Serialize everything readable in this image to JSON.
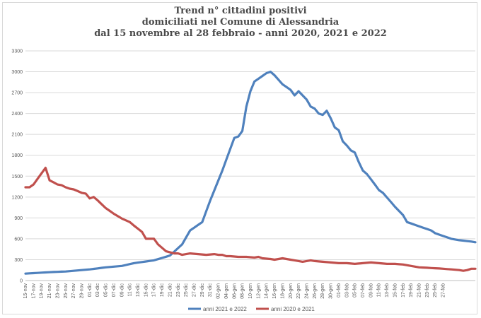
{
  "chart_data": {
    "type": "line",
    "title": [
      "Trend n° cittadini positivi",
      "domiciliati nel Comune di Alessandria",
      "dal 15 novembre al 28 febbraio - anni 2020, 2021 e 2022"
    ],
    "xlabel": "",
    "ylabel": "",
    "ylim": [
      0,
      3300
    ],
    "yticks": [
      0,
      300,
      600,
      900,
      1200,
      1500,
      1800,
      2100,
      2400,
      2700,
      3000,
      3300
    ],
    "grid": true,
    "legend_position": "bottom",
    "x_tick_labels": [
      "15-nov",
      "17-nov",
      "19-nov",
      "21-nov",
      "23-nov",
      "25-nov",
      "27-nov",
      "29-nov",
      "01-dic",
      "03-dic",
      "05-dic",
      "07-dic",
      "09-dic",
      "11-dic",
      "13-dic",
      "15-dic",
      "17-dic",
      "19-dic",
      "21-dic",
      "23-dic",
      "25-dic",
      "27-dic",
      "29-dic",
      "31-dic",
      "02-gen",
      "04-gen",
      "06-gen",
      "08-gen",
      "10-gen",
      "12-gen",
      "14-gen",
      "16-gen",
      "18-gen",
      "20-gen",
      "22-gen",
      "24-gen",
      "26-gen",
      "28-gen",
      "30-gen",
      "01-feb",
      "03-feb",
      "05-feb",
      "07-feb",
      "09-feb",
      "11-feb",
      "13-feb",
      "15-feb",
      "17-feb",
      "19-feb",
      "21-feb",
      "23-feb",
      "25-feb",
      "27-feb"
    ],
    "series": [
      {
        "name": "anni 2021 e 2022",
        "color": "#4f81bd",
        "keypoints": [
          [
            0,
            100
          ],
          [
            6,
            120
          ],
          [
            10,
            130
          ],
          [
            16,
            160
          ],
          [
            20,
            190
          ],
          [
            24,
            210
          ],
          [
            27,
            250
          ],
          [
            32,
            290
          ],
          [
            36,
            360
          ],
          [
            39,
            520
          ],
          [
            41,
            720
          ],
          [
            44,
            840
          ],
          [
            46,
            1150
          ],
          [
            49,
            1580
          ],
          [
            52,
            2050
          ],
          [
            53,
            2070
          ],
          [
            54,
            2150
          ],
          [
            55,
            2500
          ],
          [
            56,
            2720
          ],
          [
            57,
            2860
          ],
          [
            58,
            2900
          ],
          [
            60,
            2980
          ],
          [
            61,
            3000
          ],
          [
            62,
            2950
          ],
          [
            64,
            2820
          ],
          [
            66,
            2740
          ],
          [
            67,
            2660
          ],
          [
            68,
            2720
          ],
          [
            70,
            2600
          ],
          [
            71,
            2500
          ],
          [
            72,
            2470
          ],
          [
            73,
            2400
          ],
          [
            74,
            2380
          ],
          [
            75,
            2440
          ],
          [
            76,
            2330
          ],
          [
            77,
            2200
          ],
          [
            78,
            2160
          ],
          [
            79,
            2000
          ],
          [
            80,
            1940
          ],
          [
            81,
            1870
          ],
          [
            82,
            1840
          ],
          [
            83,
            1700
          ],
          [
            84,
            1580
          ],
          [
            85,
            1530
          ],
          [
            87,
            1380
          ],
          [
            88,
            1300
          ],
          [
            89,
            1260
          ],
          [
            92,
            1060
          ],
          [
            94,
            940
          ],
          [
            95,
            840
          ],
          [
            97,
            800
          ],
          [
            99,
            760
          ],
          [
            101,
            720
          ],
          [
            102,
            680
          ],
          [
            104,
            640
          ],
          [
            106,
            600
          ],
          [
            108,
            580
          ],
          [
            111,
            560
          ],
          [
            112,
            550
          ]
        ]
      },
      {
        "name": "anni 2020 e 2021",
        "color": "#c0504d",
        "keypoints": [
          [
            0,
            1340
          ],
          [
            1,
            1340
          ],
          [
            2,
            1380
          ],
          [
            4,
            1540
          ],
          [
            5,
            1620
          ],
          [
            6,
            1440
          ],
          [
            8,
            1380
          ],
          [
            9,
            1370
          ],
          [
            10,
            1340
          ],
          [
            11,
            1320
          ],
          [
            12,
            1310
          ],
          [
            14,
            1260
          ],
          [
            15,
            1250
          ],
          [
            16,
            1180
          ],
          [
            17,
            1200
          ],
          [
            18,
            1150
          ],
          [
            20,
            1040
          ],
          [
            22,
            960
          ],
          [
            24,
            890
          ],
          [
            26,
            840
          ],
          [
            27,
            790
          ],
          [
            29,
            700
          ],
          [
            30,
            600
          ],
          [
            32,
            600
          ],
          [
            33,
            520
          ],
          [
            35,
            420
          ],
          [
            37,
            390
          ],
          [
            38,
            390
          ],
          [
            39,
            370
          ],
          [
            41,
            390
          ],
          [
            43,
            380
          ],
          [
            45,
            370
          ],
          [
            47,
            380
          ],
          [
            48,
            370
          ],
          [
            49,
            370
          ],
          [
            50,
            350
          ],
          [
            51,
            350
          ],
          [
            53,
            340
          ],
          [
            55,
            340
          ],
          [
            57,
            330
          ],
          [
            58,
            340
          ],
          [
            59,
            320
          ],
          [
            61,
            310
          ],
          [
            62,
            300
          ],
          [
            64,
            320
          ],
          [
            66,
            300
          ],
          [
            68,
            280
          ],
          [
            69,
            270
          ],
          [
            71,
            290
          ],
          [
            72,
            280
          ],
          [
            74,
            270
          ],
          [
            76,
            260
          ],
          [
            78,
            250
          ],
          [
            80,
            250
          ],
          [
            82,
            240
          ],
          [
            84,
            250
          ],
          [
            86,
            260
          ],
          [
            88,
            250
          ],
          [
            90,
            240
          ],
          [
            92,
            240
          ],
          [
            94,
            230
          ],
          [
            96,
            210
          ],
          [
            98,
            190
          ],
          [
            101,
            180
          ],
          [
            104,
            170
          ],
          [
            106,
            160
          ],
          [
            108,
            150
          ],
          [
            109,
            140
          ],
          [
            110,
            150
          ],
          [
            111,
            170
          ],
          [
            112,
            170
          ]
        ]
      }
    ]
  }
}
